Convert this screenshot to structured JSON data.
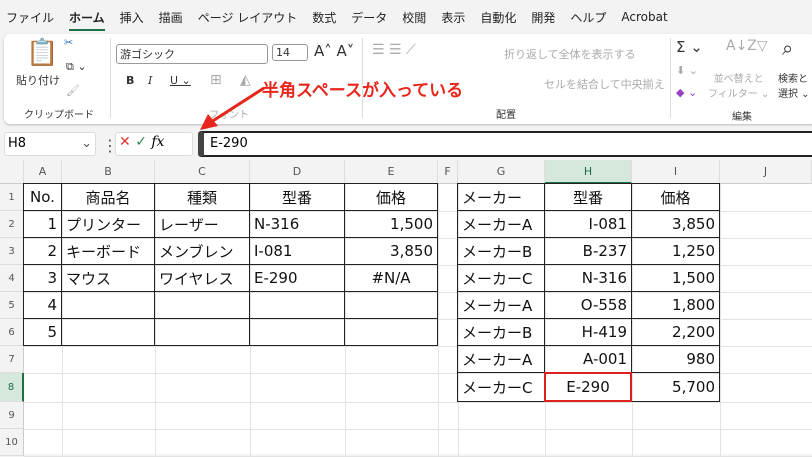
{
  "menu": [
    "ファイル",
    "ホーム",
    "挿入",
    "描画",
    "ページ レイアウト",
    "数式",
    "データ",
    "校閲",
    "表示",
    "自動化",
    "開発",
    "ヘルプ",
    "Acrobat"
  ],
  "ribbon": {
    "paste": "貼り付け",
    "clipboard": "クリップボード",
    "font_name": "游ゴシック",
    "font_size": "14",
    "font_group": "フォント",
    "wrap": "折り返して全体を表示する",
    "merge": "セルを結合して中央揃え",
    "align_group": "配置",
    "sort": "並べ替えと",
    "filter": "フィルター",
    "find": "検索と",
    "select": "選択",
    "edit_group": "編集"
  },
  "formula_bar": {
    "name_box": "H8",
    "fx": "fx",
    "value": "E-290"
  },
  "annotation": {
    "text": "半角スペースが入っている",
    "color": "#e8261c"
  },
  "columns": [
    "A",
    "B",
    "C",
    "D",
    "E",
    "F",
    "G",
    "H",
    "I",
    "J"
  ],
  "rows": [
    "1",
    "2",
    "3",
    "4",
    "5",
    "6",
    "7",
    "8",
    "9",
    "10"
  ],
  "table1": {
    "headers": [
      "No.",
      "商品名",
      "種類",
      "型番",
      "価格"
    ],
    "rows": [
      [
        "1",
        "プリンター",
        "レーザー",
        "N-316",
        "1,500"
      ],
      [
        "2",
        "キーボード",
        "メンブレン",
        "I-081",
        "3,850"
      ],
      [
        "3",
        "マウス",
        "ワイヤレス",
        "E-290",
        "#N/A"
      ],
      [
        "4",
        "",
        "",
        "",
        ""
      ],
      [
        "5",
        "",
        "",
        "",
        ""
      ]
    ]
  },
  "table2": {
    "headers": [
      "メーカー",
      "型番",
      "価格"
    ],
    "rows": [
      [
        "メーカーA",
        "I-081",
        "3,850"
      ],
      [
        "メーカーB",
        "B-237",
        "1,250"
      ],
      [
        "メーカーC",
        "N-316",
        "1,500"
      ],
      [
        "メーカーA",
        "O-558",
        "1,800"
      ],
      [
        "メーカーB",
        "H-419",
        "2,200"
      ],
      [
        "メーカーA",
        "A-001",
        "980"
      ],
      [
        "メーカーC",
        "E-290",
        "5,700"
      ]
    ]
  }
}
